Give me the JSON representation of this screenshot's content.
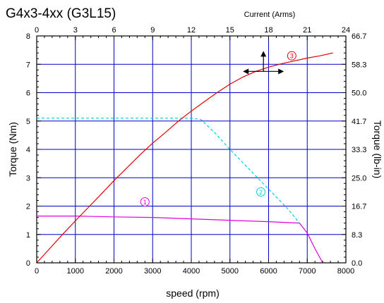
{
  "chart_data": {
    "type": "line",
    "title": "G4x3-4xx (G3L15)",
    "xlabel": "speed (rpm)",
    "ylabel": "Torque (Nm)",
    "y2label": "Torque (lb-in)",
    "x2label": "Current (Arms)",
    "xlim": [
      0,
      8000
    ],
    "ylim": [
      0,
      8
    ],
    "x2lim": [
      0,
      24
    ],
    "grid": true,
    "x_ticks": [
      "0",
      "1000",
      "2000",
      "3000",
      "4000",
      "5000",
      "6000",
      "7000",
      "8000"
    ],
    "y_ticks": [
      "0",
      "1",
      "2",
      "3",
      "4",
      "5",
      "6",
      "7",
      "8"
    ],
    "x2_ticks": [
      "0",
      "3",
      "6",
      "9",
      "12",
      "15",
      "18",
      "21",
      "24"
    ],
    "y2_ticks": [
      "0.0",
      "8.3",
      "16.7",
      "25.0",
      "33.3",
      "41.7",
      "50.0",
      "58.3",
      "66.7"
    ],
    "series": [
      {
        "label": "1",
        "color": "#e000e0",
        "style": "solid",
        "axis": "speed",
        "x": [
          0,
          1000,
          2000,
          3000,
          4000,
          5000,
          6000,
          6800,
          7000,
          7200,
          7400
        ],
        "y": [
          1.65,
          1.65,
          1.62,
          1.6,
          1.55,
          1.5,
          1.45,
          1.4,
          1.05,
          0.5,
          0.0
        ]
      },
      {
        "label": "2",
        "color": "#00d0e0",
        "style": "dashed",
        "axis": "speed",
        "x": [
          0,
          1000,
          2000,
          3000,
          4000,
          4250,
          4600,
          5000,
          5500,
          6000,
          6500,
          6800
        ],
        "y": [
          5.1,
          5.1,
          5.1,
          5.1,
          5.1,
          5.05,
          4.6,
          4.0,
          3.3,
          2.6,
          1.9,
          1.4
        ]
      },
      {
        "label": "3",
        "color": "#e00000",
        "style": "solid",
        "axis": "current",
        "x": [
          0,
          1,
          2,
          3,
          4,
          5,
          6,
          7,
          8,
          9,
          10,
          11,
          12,
          13,
          14,
          15,
          16,
          17,
          18,
          19,
          20,
          21,
          22,
          23
        ],
        "y": [
          0.0,
          0.5,
          1.0,
          1.48,
          1.95,
          2.42,
          2.9,
          3.35,
          3.8,
          4.22,
          4.6,
          5.0,
          5.35,
          5.68,
          6.0,
          6.3,
          6.55,
          6.75,
          6.9,
          7.02,
          7.12,
          7.22,
          7.3,
          7.4
        ]
      }
    ]
  }
}
